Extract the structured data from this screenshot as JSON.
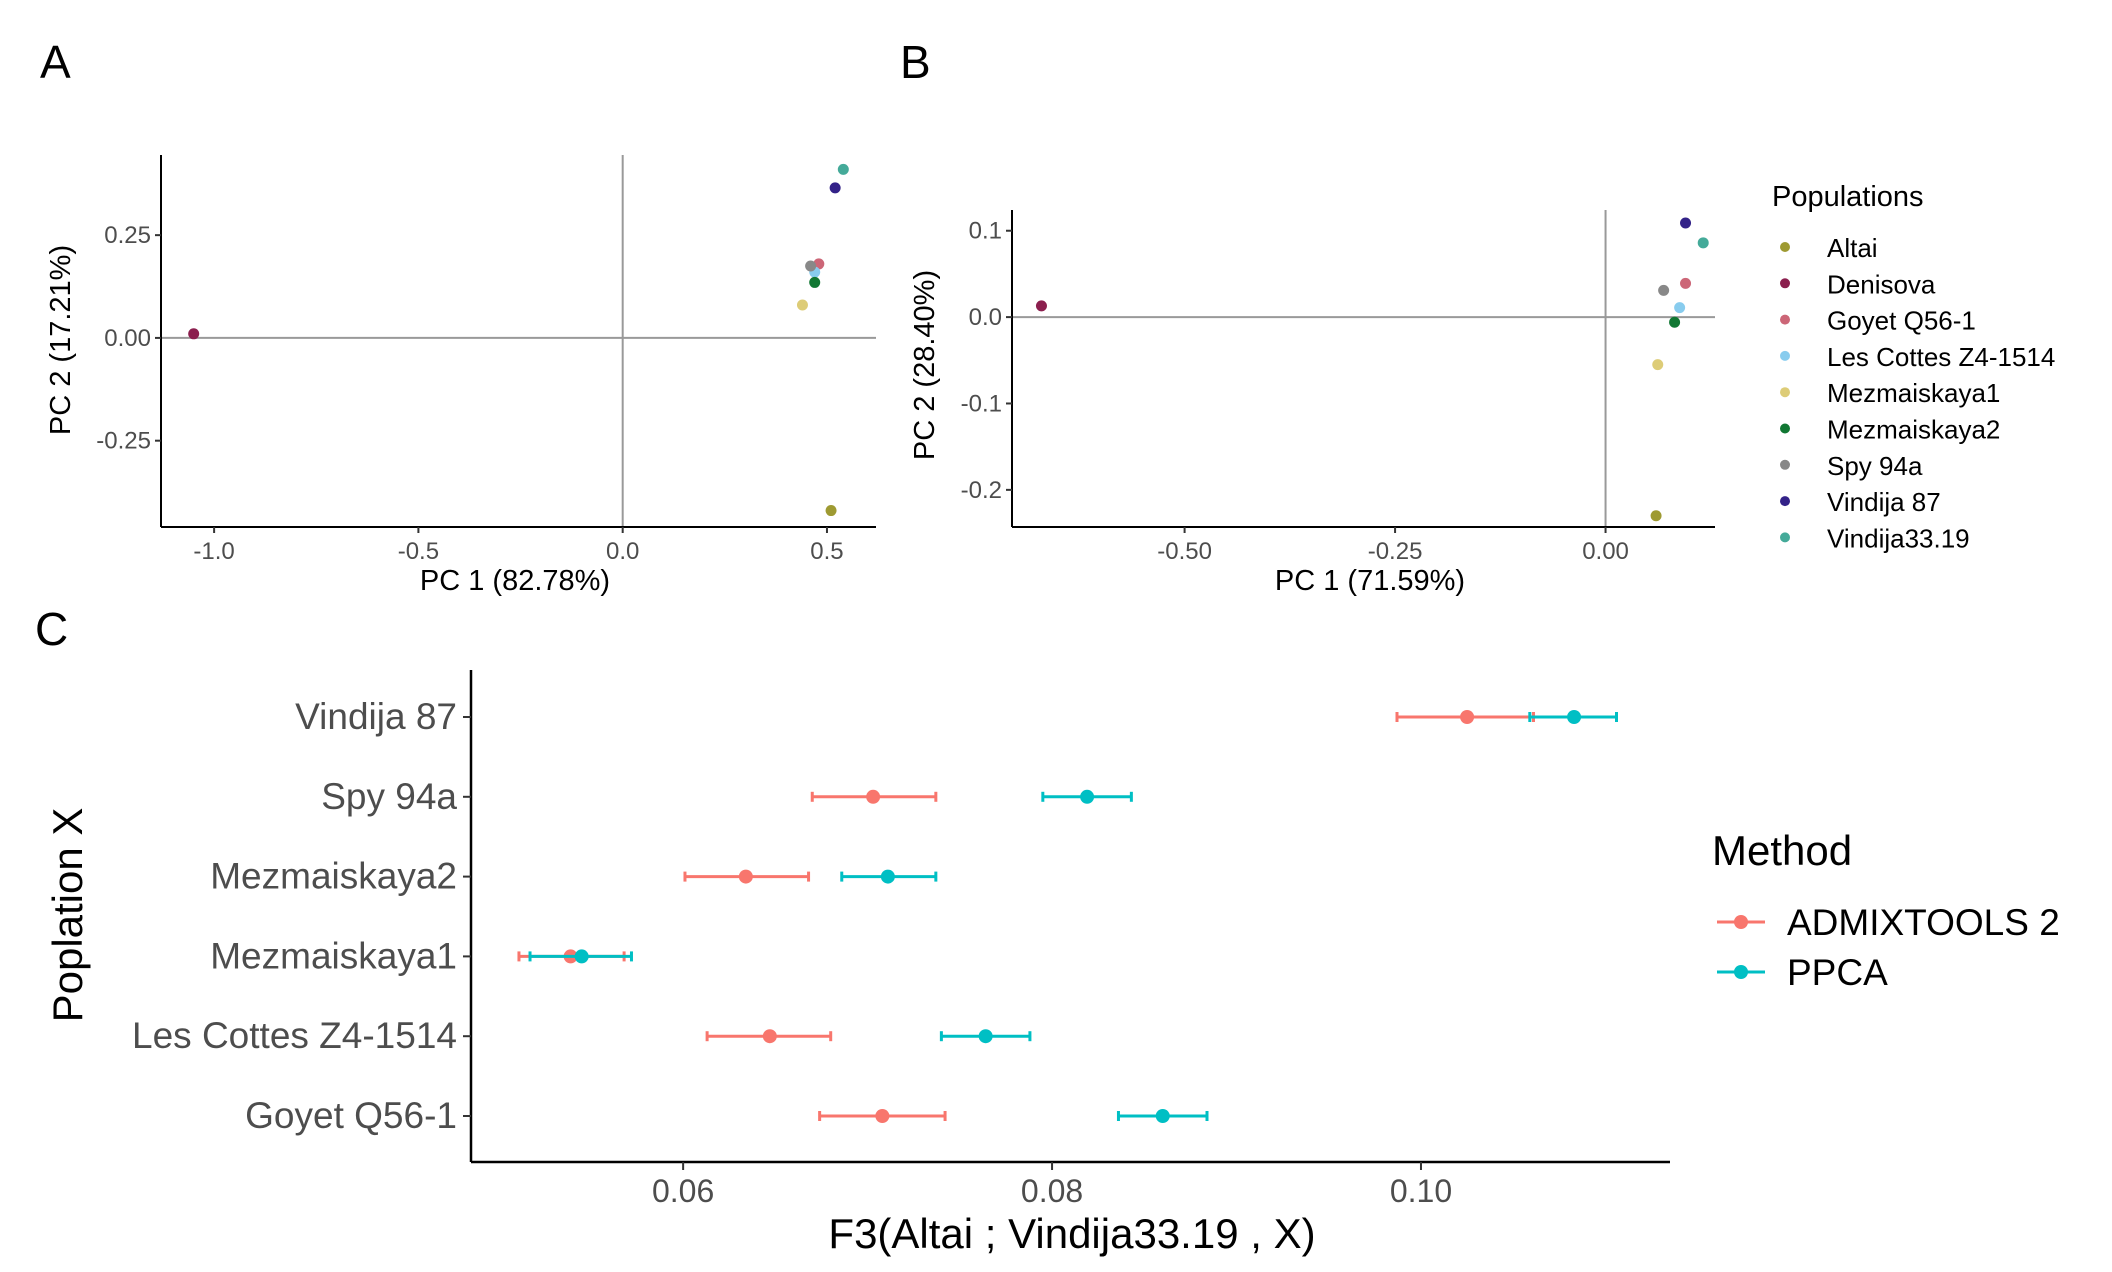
{
  "panel_labels": [
    "A",
    "B",
    "C"
  ],
  "chart_data": [
    {
      "type": "scatter",
      "panel": "A",
      "xlabel": "PC 1 (82.78%)",
      "ylabel": "PC 2 (17.21%)",
      "xlim": [
        -1.13,
        0.62
      ],
      "ylim": [
        -0.46,
        0.445
      ],
      "xticks": [
        -1.0,
        -0.5,
        0.0,
        0.5
      ],
      "xtick_labels": [
        "-1.0",
        "-0.5",
        "0.0",
        "0.5"
      ],
      "yticks": [
        -0.25,
        0.0,
        0.25
      ],
      "ytick_labels": [
        "-0.25",
        "0.00",
        "0.25"
      ],
      "reference_lines": {
        "x": 0,
        "y": 0
      },
      "points": [
        {
          "name": "Altai",
          "x": 0.51,
          "y": -0.42
        },
        {
          "name": "Denisova",
          "x": -1.05,
          "y": 0.01
        },
        {
          "name": "Goyet Q56-1",
          "x": 0.48,
          "y": 0.18
        },
        {
          "name": "Les Cottes Z4-1514",
          "x": 0.47,
          "y": 0.16
        },
        {
          "name": "Mezmaiskaya1",
          "x": 0.44,
          "y": 0.08
        },
        {
          "name": "Mezmaiskaya2",
          "x": 0.47,
          "y": 0.135
        },
        {
          "name": "Spy 94a",
          "x": 0.46,
          "y": 0.175
        },
        {
          "name": "Vindija 87",
          "x": 0.52,
          "y": 0.365
        },
        {
          "name": "Vindija33.19",
          "x": 0.54,
          "y": 0.41
        }
      ]
    },
    {
      "type": "scatter",
      "panel": "B",
      "xlabel": "PC 1 (71.59%)",
      "ylabel": "PC 2 (28.40%)",
      "xlim": [
        -0.705,
        0.13
      ],
      "ylim": [
        -0.243,
        0.124
      ],
      "xticks": [
        -0.5,
        -0.25,
        0.0
      ],
      "xtick_labels": [
        "-0.50",
        "-0.25",
        "0.00"
      ],
      "yticks": [
        -0.2,
        -0.1,
        0.0,
        0.1
      ],
      "ytick_labels": [
        "-0.2",
        "-0.1",
        "0.0",
        "0.1"
      ],
      "reference_lines": {
        "x": 0,
        "y": 0
      },
      "points": [
        {
          "name": "Altai",
          "x": 0.06,
          "y": -0.23
        },
        {
          "name": "Denisova",
          "x": -0.67,
          "y": 0.013
        },
        {
          "name": "Goyet Q56-1",
          "x": 0.095,
          "y": 0.039
        },
        {
          "name": "Les Cottes Z4-1514",
          "x": 0.088,
          "y": 0.011
        },
        {
          "name": "Mezmaiskaya1",
          "x": 0.062,
          "y": -0.055
        },
        {
          "name": "Mezmaiskaya2",
          "x": 0.082,
          "y": -0.006
        },
        {
          "name": "Spy 94a",
          "x": 0.069,
          "y": 0.031
        },
        {
          "name": "Vindija 87",
          "x": 0.095,
          "y": 0.109
        },
        {
          "name": "Vindija33.19",
          "x": 0.116,
          "y": 0.086
        }
      ]
    },
    {
      "type": "errorbar",
      "panel": "C",
      "xlabel": "F3(Altai ; Vindija33.19 , X)",
      "ylabel": "Poplation X",
      "xlim": [
        0.0485,
        0.1135
      ],
      "xticks": [
        0.06,
        0.08,
        0.1
      ],
      "xtick_labels": [
        "0.06",
        "0.08",
        "0.10"
      ],
      "categories": [
        "Goyet Q56-1",
        "Les Cottes Z4-1514",
        "Mezmaiskaya1",
        "Mezmaiskaya2",
        "Spy 94a",
        "Vindija 87"
      ],
      "series": [
        {
          "name": "ADMIXTOOLS 2",
          "values": [
            0.0708,
            0.0647,
            0.0539,
            0.0634,
            0.0703,
            0.1025
          ],
          "lower": [
            0.0674,
            0.0613,
            0.0511,
            0.0601,
            0.067,
            0.0987
          ],
          "upper": [
            0.0742,
            0.068,
            0.0568,
            0.0668,
            0.0737,
            0.1061
          ]
        },
        {
          "name": "PPCA",
          "values": [
            0.086,
            0.0764,
            0.0545,
            0.0711,
            0.0819,
            0.1083
          ],
          "lower": [
            0.0836,
            0.074,
            0.0517,
            0.0686,
            0.0795,
            0.1059
          ],
          "upper": [
            0.0884,
            0.0788,
            0.0572,
            0.0737,
            0.0843,
            0.1106
          ]
        }
      ]
    }
  ],
  "legend_populations": {
    "title": "Populations",
    "items": [
      {
        "name": "Altai",
        "color": "#9e9a32"
      },
      {
        "name": "Denisova",
        "color": "#8b1f4e"
      },
      {
        "name": "Goyet Q56-1",
        "color": "#cc6677"
      },
      {
        "name": "Les Cottes Z4-1514",
        "color": "#88ccee"
      },
      {
        "name": "Mezmaiskaya1",
        "color": "#ddcc77"
      },
      {
        "name": "Mezmaiskaya2",
        "color": "#117733"
      },
      {
        "name": "Spy 94a",
        "color": "#888888"
      },
      {
        "name": "Vindija 87",
        "color": "#332288"
      },
      {
        "name": "Vindija33.19",
        "color": "#44aa99"
      }
    ]
  },
  "legend_method": {
    "title": "Method",
    "items": [
      {
        "name": "ADMIXTOOLS 2",
        "color": "#f8766d"
      },
      {
        "name": "PPCA",
        "color": "#00bfc4"
      }
    ]
  }
}
